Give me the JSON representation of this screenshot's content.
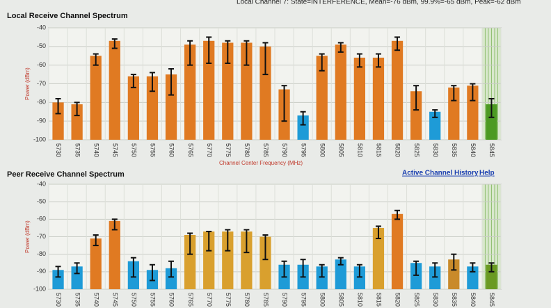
{
  "status": "Local Channel 7: State=INTERFERENCE, Mean=-76 dBm, 99.9%=-65 dBm, Peak=-62 dBm",
  "links": [
    "Active Channel History",
    "Help"
  ],
  "chart_data": [
    {
      "type": "bar",
      "title": "Local Receive Channel Spectrum",
      "y_label": "Power (dBm)",
      "x_label": "Channel Center Frequency (MHz)",
      "categories": [
        "5730",
        "5735",
        "5740",
        "5745",
        "5750",
        "5755",
        "5760",
        "5765",
        "5770",
        "5775",
        "5780",
        "5785",
        "5790",
        "5795",
        "5800",
        "5805",
        "5810",
        "5815",
        "5820",
        "5825",
        "5830",
        "5835",
        "5840",
        "5845"
      ],
      "series": [
        {
          "values": [
            -80,
            -81,
            -55,
            -47,
            -66,
            -66,
            -65,
            -49,
            -47,
            -48,
            -48,
            -50,
            -73,
            -87,
            -55,
            -49,
            -56,
            -56,
            -47,
            -74,
            -85,
            -72,
            -71,
            -81
          ],
          "highs": [
            -78,
            -80,
            -54,
            -46,
            -65,
            -64,
            -62,
            -47,
            -45,
            -47,
            -47,
            -48,
            -71,
            -85,
            -54,
            -48,
            -54,
            -54,
            -45,
            -71,
            -84,
            -71,
            -70,
            -78
          ],
          "lows": [
            -86,
            -87,
            -60,
            -51,
            -72,
            -74,
            -76,
            -60,
            -59,
            -59,
            -60,
            -65,
            -90,
            -92,
            -63,
            -53,
            -61,
            -61,
            -52,
            -84,
            -88,
            -79,
            -79,
            -88
          ],
          "colors": [
            "#e07a22",
            "#e07a22",
            "#e07a22",
            "#e07a22",
            "#e07a22",
            "#e07a22",
            "#e07a22",
            "#e07a22",
            "#e07a22",
            "#e07a22",
            "#e07a22",
            "#e07a22",
            "#e07a22",
            "#1e9bd7",
            "#e07a22",
            "#e07a22",
            "#e07a22",
            "#e07a22",
            "#e07a22",
            "#e07a22",
            "#1e9bd7",
            "#e07a22",
            "#e07a22",
            "#4c9a22"
          ]
        }
      ],
      "ylim": [
        -100,
        -40
      ],
      "yticks": [
        -40,
        -50,
        -60,
        -70,
        -80,
        -90,
        -100
      ],
      "grid": true
    },
    {
      "type": "bar",
      "title": "Peer Receive Channel Spectrum",
      "y_label": "Power (dBm)",
      "categories": [
        "5730",
        "5735",
        "5740",
        "5745",
        "5750",
        "5755",
        "5760",
        "5765",
        "5770",
        "5775",
        "5780",
        "5785",
        "5790",
        "5795",
        "5800",
        "5805",
        "5810",
        "5815",
        "5820",
        "5825",
        "5830",
        "5835",
        "5840",
        "5845"
      ],
      "series": [
        {
          "values": [
            -89,
            -87,
            -71,
            -61,
            -84,
            -89,
            -88,
            -69,
            -67,
            -67,
            -67,
            -70,
            -86,
            -86,
            -87,
            -83,
            -87,
            -65,
            -57,
            -85,
            -87,
            -83,
            -87,
            -86
          ],
          "highs": [
            -87,
            -85,
            -69,
            -60,
            -82,
            -86,
            -84,
            -68,
            -67,
            -66,
            -66,
            -69,
            -84,
            -83,
            -86,
            -82,
            -86,
            -64,
            -55,
            -84,
            -85,
            -80,
            -85,
            -85
          ],
          "lows": [
            -93,
            -91,
            -75,
            -66,
            -93,
            -95,
            -93,
            -80,
            -78,
            -78,
            -79,
            -83,
            -93,
            -93,
            -93,
            -86,
            -93,
            -71,
            -60,
            -92,
            -93,
            -89,
            -90,
            -90
          ],
          "colors": [
            "#1e9bd7",
            "#1e9bd7",
            "#e07a22",
            "#e07a22",
            "#1e9bd7",
            "#1e9bd7",
            "#1e9bd7",
            "#d9a02e",
            "#d9a02e",
            "#d9a02e",
            "#d9a02e",
            "#d9a02e",
            "#1e9bd7",
            "#1e9bd7",
            "#1e9bd7",
            "#1e9bd7",
            "#1e9bd7",
            "#d9a02e",
            "#e07a22",
            "#1e9bd7",
            "#1e9bd7",
            "#c98a2a",
            "#1e9bd7",
            "#6a9a22"
          ]
        }
      ],
      "ylim": [
        -100,
        -40
      ],
      "yticks": [
        -40,
        -50,
        -60,
        -70,
        -80,
        -90,
        -100
      ],
      "grid": true
    }
  ]
}
